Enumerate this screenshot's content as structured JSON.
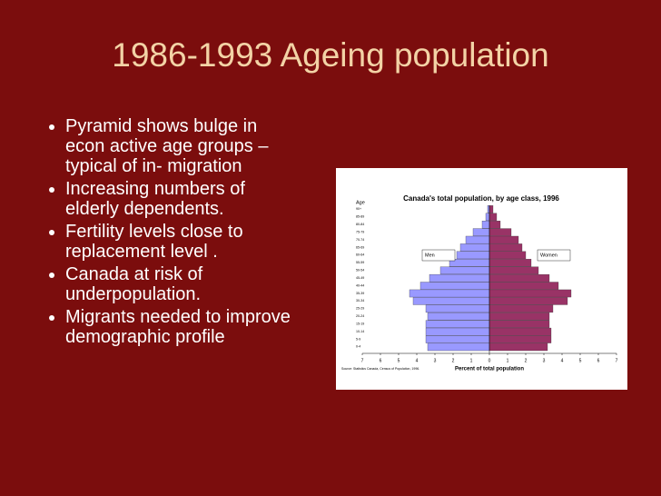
{
  "slide": {
    "title": "1986-1993  Ageing population",
    "bullets": [
      "Pyramid shows bulge in econ active age groups – typical of in- migration",
      "Increasing numbers of elderly dependents.",
      "Fertility levels close to replacement level .",
      "Canada at risk of underpopulation.",
      "Migrants needed to improve demographic profile"
    ]
  },
  "chart_data": {
    "type": "bar",
    "orientation": "horizontal",
    "title": "Canada's total population, by age class, 1996",
    "y_label": "Age",
    "x_label": "Percent of total population",
    "source": "Source: Statistics Canada, Census of Population, 1996.",
    "categories": [
      "90+",
      "85-89",
      "80-84",
      "75-79",
      "70-74",
      "65-69",
      "60-64",
      "55-59",
      "50-54",
      "45-49",
      "40-44",
      "35-39",
      "30-34",
      "25-29",
      "20-24",
      "15-19",
      "10-14",
      "5-9",
      "0-4"
    ],
    "series": [
      {
        "name": "Men",
        "color": "#9999ff",
        "values": [
          -0.1,
          -0.2,
          -0.4,
          -0.9,
          -1.3,
          -1.6,
          -1.8,
          -2.2,
          -2.7,
          -3.3,
          -3.8,
          -4.4,
          -4.2,
          -3.5,
          -3.4,
          -3.5,
          -3.5,
          -3.5,
          -3.4
        ]
      },
      {
        "name": "Women",
        "color": "#993366",
        "values": [
          0.2,
          0.4,
          0.6,
          1.2,
          1.6,
          1.8,
          2.0,
          2.3,
          2.7,
          3.3,
          3.8,
          4.5,
          4.3,
          3.5,
          3.3,
          3.3,
          3.4,
          3.4,
          3.2
        ]
      }
    ],
    "xlim": [
      -7,
      7
    ],
    "xticks": [
      {
        "value": -7,
        "label": "7"
      },
      {
        "value": -6,
        "label": "6"
      },
      {
        "value": -5,
        "label": "5"
      },
      {
        "value": -4,
        "label": "4"
      },
      {
        "value": -3,
        "label": "3"
      },
      {
        "value": -2,
        "label": "2"
      },
      {
        "value": -1,
        "label": "1"
      },
      0,
      1,
      2,
      3,
      4,
      5,
      6,
      7
    ]
  }
}
